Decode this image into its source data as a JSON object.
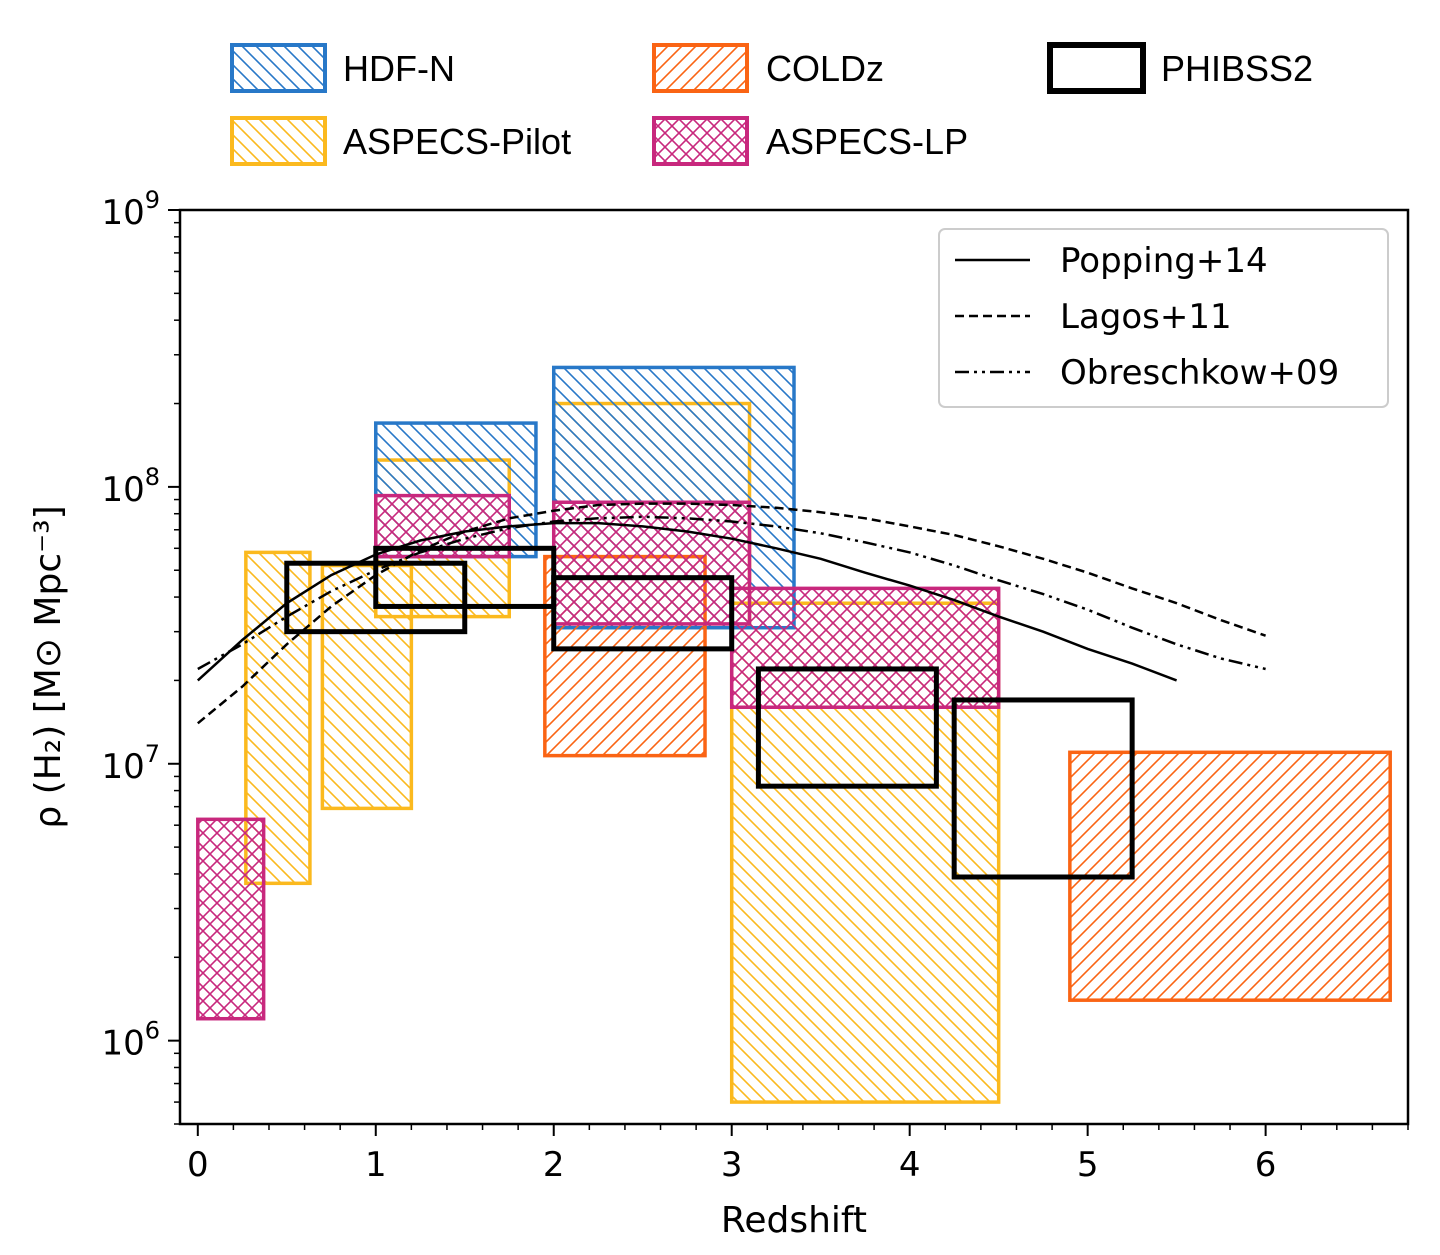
{
  "chart_data": {
    "type": "box-regions",
    "title": "",
    "xlabel": "Redshift",
    "ylabel": "ρ (H₂) [M⊙ Mpc⁻³]",
    "yscale": "log",
    "xlim": [
      -0.1,
      6.8
    ],
    "ylim": [
      500000,
      1000000000
    ],
    "x_ticks": [
      {
        "value": 0,
        "label": "0"
      },
      {
        "value": 1,
        "label": "1"
      },
      {
        "value": 2,
        "label": "2"
      },
      {
        "value": 3,
        "label": "3"
      },
      {
        "value": 4,
        "label": "4"
      },
      {
        "value": 5,
        "label": "5"
      },
      {
        "value": 6,
        "label": "6"
      }
    ],
    "y_ticks": [
      {
        "value": 1000000,
        "base": "10",
        "exp": "6"
      },
      {
        "value": 10000000,
        "base": "10",
        "exp": "7"
      },
      {
        "value": 100000000,
        "base": "10",
        "exp": "8"
      },
      {
        "value": 1000000000,
        "base": "10",
        "exp": "9"
      }
    ],
    "surveys": [
      {
        "name": "HDF-N",
        "color": "#2878c8",
        "hatch": "backslash",
        "boxes": [
          {
            "z": [
              1.0,
              1.9
            ],
            "rho": [
              56000000,
              170000000
            ]
          },
          {
            "z": [
              2.0,
              3.35
            ],
            "rho": [
              31000000,
              270000000
            ]
          }
        ]
      },
      {
        "name": "COLDz",
        "color": "#fa6414",
        "hatch": "slash",
        "boxes": [
          {
            "z": [
              1.95,
              2.85
            ],
            "rho": [
              10700000,
              56000000
            ]
          },
          {
            "z": [
              4.9,
              6.7
            ],
            "rho": [
              1400000,
              11000000
            ]
          }
        ]
      },
      {
        "name": "PHIBSS2",
        "color": "#000000",
        "hatch": "none",
        "boxes": [
          {
            "z": [
              0.5,
              1.5
            ],
            "rho": [
              30000000,
              53000000
            ]
          },
          {
            "z": [
              1.0,
              2.0
            ],
            "rho": [
              37000000,
              60000000
            ]
          },
          {
            "z": [
              2.0,
              3.0
            ],
            "rho": [
              26000000,
              47000000
            ]
          },
          {
            "z": [
              3.15,
              4.15
            ],
            "rho": [
              8300000,
              22000000
            ]
          },
          {
            "z": [
              4.25,
              5.25
            ],
            "rho": [
              3900000,
              17000000
            ]
          }
        ]
      },
      {
        "name": "ASPECS-Pilot",
        "color": "#fbb91e",
        "hatch": "backslash",
        "boxes": [
          {
            "z": [
              0.27,
              0.63
            ],
            "rho": [
              3700000,
              58000000
            ]
          },
          {
            "z": [
              0.7,
              1.2
            ],
            "rho": [
              6900000,
              52000000
            ]
          },
          {
            "z": [
              1.0,
              1.75
            ],
            "rho": [
              34000000,
              125000000
            ]
          },
          {
            "z": [
              2.0,
              3.1
            ],
            "rho": [
              31000000,
              200000000
            ]
          },
          {
            "z": [
              3.0,
              4.5
            ],
            "rho": [
              600000,
              38000000
            ]
          }
        ]
      },
      {
        "name": "ASPECS-LP",
        "color": "#c8287d",
        "hatch": "cross-slash",
        "boxes": [
          {
            "z": [
              0.0,
              0.37
            ],
            "rho": [
              1200000,
              6300000
            ]
          },
          {
            "z": [
              1.0,
              1.75
            ],
            "rho": [
              56000000,
              93000000
            ]
          },
          {
            "z": [
              2.0,
              3.1
            ],
            "rho": [
              32000000,
              88000000
            ]
          },
          {
            "z": [
              3.0,
              4.5
            ],
            "rho": [
              16000000,
              43000000
            ]
          }
        ]
      }
    ],
    "models": [
      {
        "name": "Popping+14",
        "style": "solid",
        "z": [
          0.0,
          0.25,
          0.5,
          0.75,
          1.0,
          1.25,
          1.5,
          1.75,
          2.0,
          2.25,
          2.5,
          2.75,
          3.0,
          3.25,
          3.5,
          3.75,
          4.0,
          4.25,
          4.5,
          4.75,
          5.0,
          5.25,
          5.5
        ],
        "rho": [
          20000000,
          28000000,
          38000000,
          48000000,
          57000000,
          64000000,
          69000000,
          72000000,
          74000000,
          74000000,
          72000000,
          69000000,
          65000000,
          60000000,
          55000000,
          49000000,
          44000000,
          39000000,
          34000000,
          30000000,
          26000000,
          23000000,
          20000000
        ]
      },
      {
        "name": "Lagos+11",
        "style": "dashed",
        "z": [
          0.0,
          0.25,
          0.5,
          0.75,
          1.0,
          1.25,
          1.5,
          1.75,
          2.0,
          2.25,
          2.5,
          2.75,
          3.0,
          3.25,
          3.5,
          3.75,
          4.0,
          4.25,
          4.5,
          4.75,
          5.0,
          5.25,
          5.5,
          5.75,
          6.0
        ],
        "rho": [
          14000000,
          19000000,
          27000000,
          37000000,
          48000000,
          59000000,
          69000000,
          77000000,
          82000000,
          86000000,
          87000000,
          87000000,
          86000000,
          84000000,
          81000000,
          77000000,
          72000000,
          67000000,
          61000000,
          55000000,
          49000000,
          43000000,
          38000000,
          33000000,
          29000000
        ]
      },
      {
        "name": "Obreschkow+09",
        "style": "dashdotdot",
        "z": [
          0.0,
          0.25,
          0.5,
          0.75,
          1.0,
          1.25,
          1.5,
          1.75,
          2.0,
          2.25,
          2.5,
          2.75,
          3.0,
          3.25,
          3.5,
          3.75,
          4.0,
          4.25,
          4.5,
          4.75,
          5.0,
          5.25,
          5.5,
          5.75,
          6.0
        ],
        "rho": [
          22000000,
          27000000,
          34000000,
          42000000,
          50000000,
          58000000,
          65000000,
          71000000,
          75000000,
          77000000,
          78000000,
          77000000,
          75000000,
          72000000,
          68000000,
          63000000,
          58000000,
          52000000,
          46000000,
          41000000,
          36000000,
          31000000,
          27000000,
          24000000,
          22000000
        ]
      }
    ]
  }
}
